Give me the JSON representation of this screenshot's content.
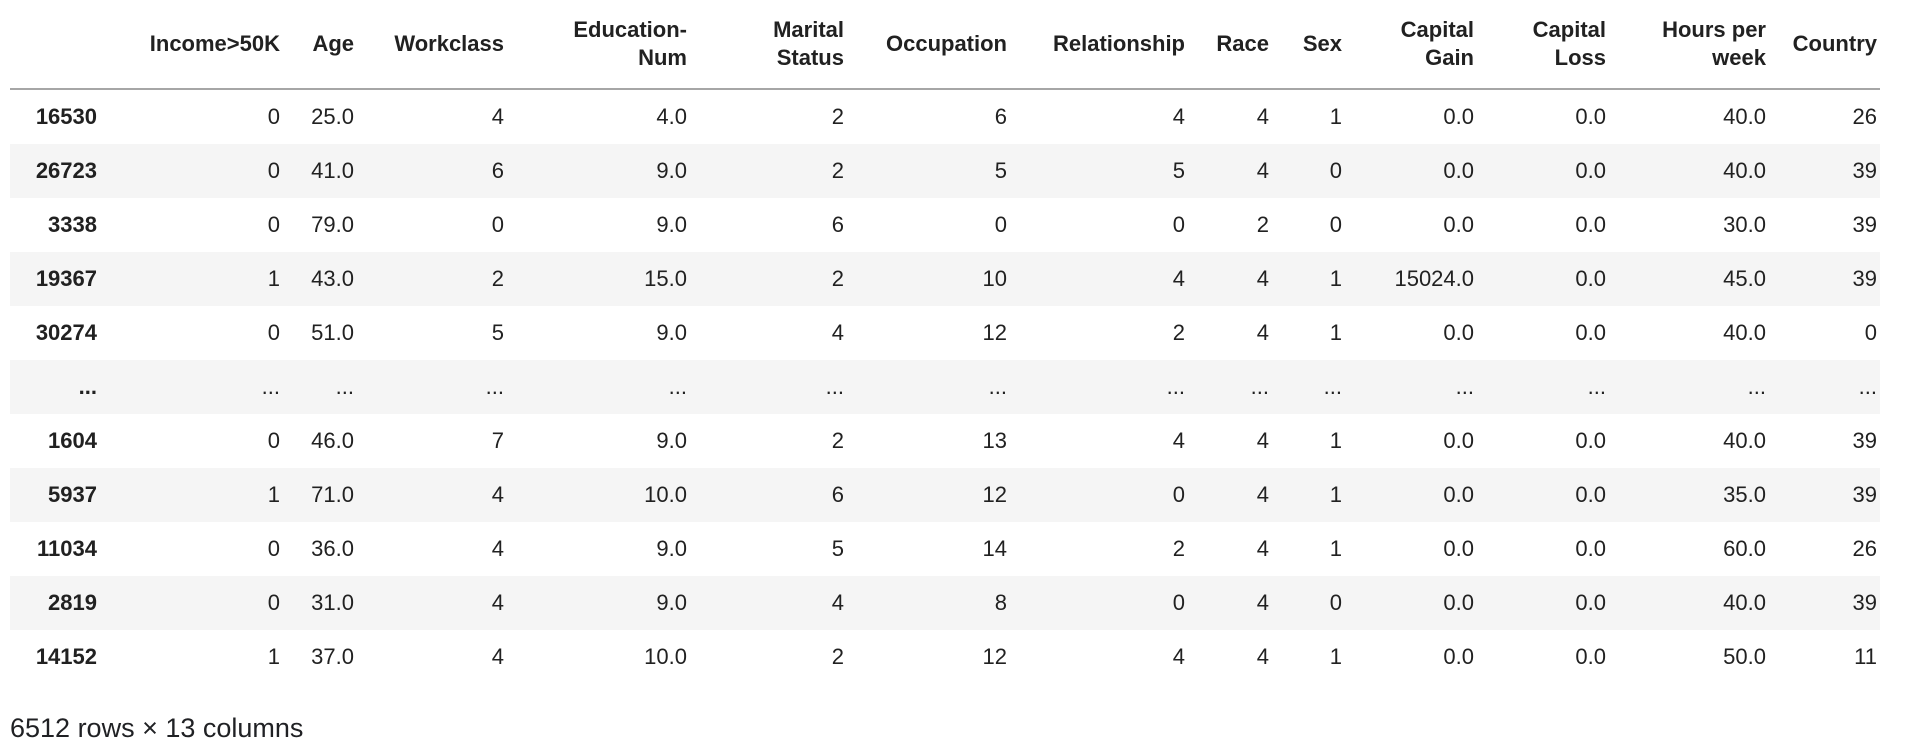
{
  "table": {
    "index_header": "",
    "columns": [
      "Income>50K",
      "Age",
      "Workclass",
      "Education-\nNum",
      "Marital\nStatus",
      "Occupation",
      "Relationship",
      "Race",
      "Sex",
      "Capital\nGain",
      "Capital\nLoss",
      "Hours per\nweek",
      "Country"
    ],
    "rows": [
      {
        "index": "16530",
        "values": [
          "0",
          "25.0",
          "4",
          "4.0",
          "2",
          "6",
          "4",
          "4",
          "1",
          "0.0",
          "0.0",
          "40.0",
          "26"
        ]
      },
      {
        "index": "26723",
        "values": [
          "0",
          "41.0",
          "6",
          "9.0",
          "2",
          "5",
          "5",
          "4",
          "0",
          "0.0",
          "0.0",
          "40.0",
          "39"
        ]
      },
      {
        "index": "3338",
        "values": [
          "0",
          "79.0",
          "0",
          "9.0",
          "6",
          "0",
          "0",
          "2",
          "0",
          "0.0",
          "0.0",
          "30.0",
          "39"
        ]
      },
      {
        "index": "19367",
        "values": [
          "1",
          "43.0",
          "2",
          "15.0",
          "2",
          "10",
          "4",
          "4",
          "1",
          "15024.0",
          "0.0",
          "45.0",
          "39"
        ]
      },
      {
        "index": "30274",
        "values": [
          "0",
          "51.0",
          "5",
          "9.0",
          "4",
          "12",
          "2",
          "4",
          "1",
          "0.0",
          "0.0",
          "40.0",
          "0"
        ]
      },
      {
        "index": "...",
        "values": [
          "...",
          "...",
          "...",
          "...",
          "...",
          "...",
          "...",
          "...",
          "...",
          "...",
          "...",
          "...",
          "..."
        ]
      },
      {
        "index": "1604",
        "values": [
          "0",
          "46.0",
          "7",
          "9.0",
          "2",
          "13",
          "4",
          "4",
          "1",
          "0.0",
          "0.0",
          "40.0",
          "39"
        ]
      },
      {
        "index": "5937",
        "values": [
          "1",
          "71.0",
          "4",
          "10.0",
          "6",
          "12",
          "0",
          "4",
          "1",
          "0.0",
          "0.0",
          "35.0",
          "39"
        ]
      },
      {
        "index": "11034",
        "values": [
          "0",
          "36.0",
          "4",
          "9.0",
          "5",
          "14",
          "2",
          "4",
          "1",
          "0.0",
          "0.0",
          "60.0",
          "26"
        ]
      },
      {
        "index": "2819",
        "values": [
          "0",
          "31.0",
          "4",
          "9.0",
          "4",
          "8",
          "0",
          "4",
          "0",
          "0.0",
          "0.0",
          "40.0",
          "39"
        ]
      },
      {
        "index": "14152",
        "values": [
          "1",
          "37.0",
          "4",
          "10.0",
          "2",
          "12",
          "4",
          "4",
          "1",
          "0.0",
          "0.0",
          "50.0",
          "11"
        ]
      }
    ],
    "footer": "6512 rows × 13 columns"
  },
  "colors": {
    "row_stripe": "#f5f5f5",
    "header_border": "#a6a6a6",
    "text": "#212121",
    "background": "#ffffff"
  }
}
